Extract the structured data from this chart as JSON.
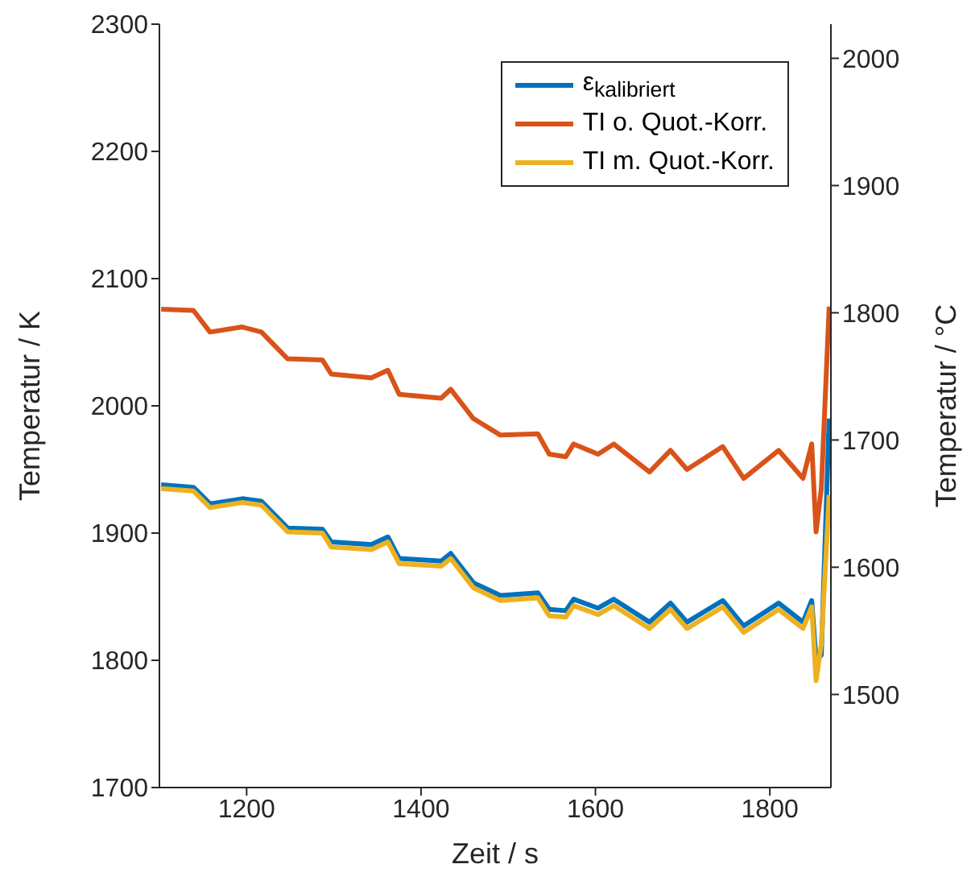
{
  "chart_data": {
    "type": "line",
    "xlabel": "Zeit / s",
    "ylabel": "Temperatur / K",
    "y2label": "Temperatur / °C",
    "x": [
      1102,
      1139,
      1158,
      1195,
      1217,
      1247,
      1287,
      1297,
      1343,
      1362,
      1375,
      1423,
      1434,
      1460,
      1491,
      1534,
      1547,
      1566,
      1575,
      1603,
      1621,
      1662,
      1686,
      1705,
      1746,
      1770,
      1810,
      1838,
      1848,
      1853,
      1859,
      1868
    ],
    "series": [
      {
        "name": "ε$_{kalibriert}$",
        "color": "#0072bd",
        "values": [
          1938,
          1936,
          1923,
          1927,
          1925,
          1904,
          1903,
          1893,
          1891,
          1897,
          1880,
          1878,
          1884,
          1861,
          1851,
          1853,
          1840,
          1839,
          1848,
          1841,
          1848,
          1830,
          1845,
          1830,
          1847,
          1827,
          1845,
          1830,
          1847,
          1800,
          1804,
          1990
        ]
      },
      {
        "name": "TI o. Quot.-Korr.",
        "color": "#d95319",
        "values": [
          2076,
          2075,
          2058,
          2062,
          2058,
          2037,
          2036,
          2025,
          2022,
          2028,
          2009,
          2006,
          2013,
          1990,
          1977,
          1978,
          1962,
          1960,
          1970,
          1962,
          1970,
          1948,
          1965,
          1950,
          1968,
          1943,
          1965,
          1943,
          1970,
          1901,
          1935,
          2078
        ]
      },
      {
        "name": "TI m. Quot.-Korr.",
        "color": "#edb120",
        "values": [
          1935,
          1933,
          1920,
          1924,
          1922,
          1901,
          1900,
          1889,
          1887,
          1893,
          1876,
          1874,
          1880,
          1857,
          1847,
          1849,
          1835,
          1834,
          1843,
          1836,
          1843,
          1825,
          1840,
          1825,
          1842,
          1822,
          1840,
          1825,
          1842,
          1784,
          1813,
          1930
        ]
      }
    ],
    "xlim": [
      1100,
      1870
    ],
    "xticks": [
      1200,
      1400,
      1600,
      1800
    ],
    "ylim": [
      1700,
      2300
    ],
    "yticks": [
      1700,
      1800,
      1900,
      2000,
      2100,
      2200,
      2300
    ],
    "y2lim": [
      1426.85,
      2026.85
    ],
    "y2ticks": [
      1500,
      1600,
      1700,
      1800,
      1900,
      2000
    ],
    "grid": false,
    "legend": "top right"
  }
}
